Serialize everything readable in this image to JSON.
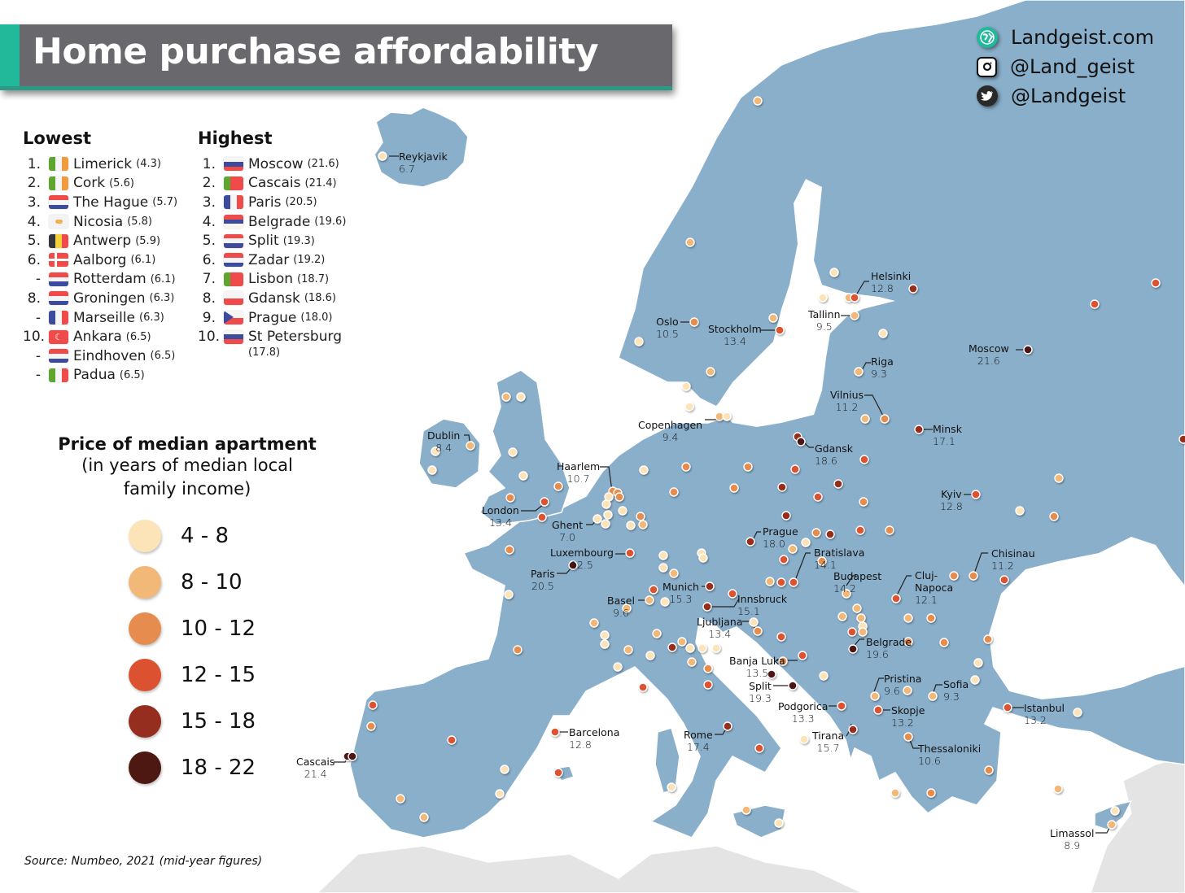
{
  "title": "Home purchase affordability",
  "social": [
    {
      "icon": "globe-icon",
      "label": "Landgeist.com",
      "color": "#22b89a"
    },
    {
      "icon": "instagram-icon",
      "label": "@Land_geist",
      "color": "#111111"
    },
    {
      "icon": "twitter-icon",
      "label": "@Landgeist",
      "color": "#2a2a2a"
    }
  ],
  "lowest": {
    "heading": "Lowest",
    "items": [
      {
        "rank": "1.",
        "city": "Limerick",
        "value": "(4.3)",
        "flag": "ireland"
      },
      {
        "rank": "2.",
        "city": "Cork",
        "value": "(5.6)",
        "flag": "ireland"
      },
      {
        "rank": "3.",
        "city": "The Hague",
        "value": "(5.7)",
        "flag": "netherlands"
      },
      {
        "rank": "4.",
        "city": "Nicosia",
        "value": "(5.8)",
        "flag": "cyprus"
      },
      {
        "rank": "5.",
        "city": "Antwerp",
        "value": "(5.9)",
        "flag": "belgium"
      },
      {
        "rank": "6.",
        "city": "Aalborg",
        "value": "(6.1)",
        "flag": "denmark"
      },
      {
        "rank": "-",
        "city": "Rotterdam",
        "value": "(6.1)",
        "flag": "netherlands"
      },
      {
        "rank": "8.",
        "city": "Groningen",
        "value": "(6.3)",
        "flag": "netherlands"
      },
      {
        "rank": "-",
        "city": "Marseille",
        "value": "(6.3)",
        "flag": "france"
      },
      {
        "rank": "10.",
        "city": "Ankara",
        "value": "(6.5)",
        "flag": "turkey"
      },
      {
        "rank": "-",
        "city": "Eindhoven",
        "value": "(6.5)",
        "flag": "netherlands"
      },
      {
        "rank": "-",
        "city": "Padua",
        "value": "(6.5)",
        "flag": "italy"
      }
    ]
  },
  "highest": {
    "heading": "Highest",
    "items": [
      {
        "rank": "1.",
        "city": "Moscow",
        "value": "(21.6)",
        "flag": "russia"
      },
      {
        "rank": "2.",
        "city": "Cascais",
        "value": "(21.4)",
        "flag": "portugal"
      },
      {
        "rank": "3.",
        "city": "Paris",
        "value": "(20.5)",
        "flag": "france"
      },
      {
        "rank": "4.",
        "city": "Belgrade",
        "value": "(19.6)",
        "flag": "serbia"
      },
      {
        "rank": "5.",
        "city": "Split",
        "value": "(19.3)",
        "flag": "croatia"
      },
      {
        "rank": "6.",
        "city": "Zadar",
        "value": "(19.2)",
        "flag": "croatia"
      },
      {
        "rank": "7.",
        "city": "Lisbon",
        "value": "(18.7)",
        "flag": "portugal"
      },
      {
        "rank": "8.",
        "city": "Gdansk",
        "value": "(18.6)",
        "flag": "poland"
      },
      {
        "rank": "9.",
        "city": "Prague",
        "value": "(18.0)",
        "flag": "czechia"
      },
      {
        "rank": "10.",
        "city": "St Petersburg",
        "value": "(17.8)",
        "flag": "russia"
      }
    ]
  },
  "legend": {
    "title": "Price of median apartment",
    "subtitle_line1": "(in years of median local",
    "subtitle_line2": "family income)",
    "bins": [
      {
        "label": "4  -  8",
        "color": "#fde3b8"
      },
      {
        "label": "8  - 10",
        "color": "#f2b877"
      },
      {
        "label": "10 - 12",
        "color": "#e68c4e"
      },
      {
        "label": "12 - 15",
        "color": "#dc5230"
      },
      {
        "label": "15 - 18",
        "color": "#962e1f"
      },
      {
        "label": "18 - 22",
        "color": "#4e1812"
      }
    ]
  },
  "source": "Source: Numbeo, 2021 (mid-year figures)",
  "colors": {
    "land": "#8aafca",
    "outside_land": "#e4e4e4",
    "sea": "#ffffff",
    "title_bar": "#69696d",
    "title_accent": "#22b89a"
  },
  "labeled_cities": [
    {
      "name": "Reykjavik",
      "value": "6.7"
    },
    {
      "name": "Helsinki",
      "value": "12.8"
    },
    {
      "name": "Tallinn",
      "value": "9.5"
    },
    {
      "name": "Oslo",
      "value": "10.5"
    },
    {
      "name": "Stockholm",
      "value": "13.4"
    },
    {
      "name": "Riga",
      "value": "9.3"
    },
    {
      "name": "Moscow",
      "value": "21.6"
    },
    {
      "name": "Vilnius",
      "value": "11.2"
    },
    {
      "name": "Minsk",
      "value": "17.1"
    },
    {
      "name": "Copenhagen",
      "value": "9.4"
    },
    {
      "name": "Dublin",
      "value": "8.4"
    },
    {
      "name": "Gdansk",
      "value": "18.6"
    },
    {
      "name": "Haarlem",
      "value": "10.7"
    },
    {
      "name": "Kyiv",
      "value": "12.8"
    },
    {
      "name": "London",
      "value": "13.4"
    },
    {
      "name": "Ghent",
      "value": "7.0"
    },
    {
      "name": "Prague",
      "value": "18.0"
    },
    {
      "name": "Luxembourg",
      "value": "12.5"
    },
    {
      "name": "Bratislava",
      "value": "14.1"
    },
    {
      "name": "Chisinau",
      "value": "11.2"
    },
    {
      "name": "Paris",
      "value": "20.5"
    },
    {
      "name": "Budapest",
      "value": "14.2"
    },
    {
      "name": "Munich",
      "value": "15.3"
    },
    {
      "name": "Cluj-Napoca",
      "value": "12.1"
    },
    {
      "name": "Basel",
      "value": "9.6"
    },
    {
      "name": "Innsbruck",
      "value": "15.1"
    },
    {
      "name": "Ljubljana",
      "value": "13.4"
    },
    {
      "name": "Belgrade",
      "value": "19.6"
    },
    {
      "name": "Banja Luka",
      "value": "13.5"
    },
    {
      "name": "Pristina",
      "value": "9.6"
    },
    {
      "name": "Sofia",
      "value": "9.3"
    },
    {
      "name": "Split",
      "value": "19.3"
    },
    {
      "name": "Podgorica",
      "value": "13.3"
    },
    {
      "name": "Istanbul",
      "value": "13.2"
    },
    {
      "name": "Skopje",
      "value": "13.2"
    },
    {
      "name": "Barcelona",
      "value": "12.8"
    },
    {
      "name": "Rome",
      "value": "17.4"
    },
    {
      "name": "Tirana",
      "value": "15.7"
    },
    {
      "name": "Thessaloniki",
      "value": "10.6"
    },
    {
      "name": "Cascais",
      "value": "21.4"
    },
    {
      "name": "Limassol",
      "value": "8.9"
    }
  ],
  "chart_data": {
    "type": "map",
    "title": "Home purchase affordability",
    "metric": "Price of median apartment (in years of median local family income)",
    "bins": [
      "4-8",
      "8-10",
      "10-12",
      "12-15",
      "15-18",
      "18-22"
    ],
    "labeled_points": [
      {
        "city": "Reykjavik",
        "value": 6.7
      },
      {
        "city": "Helsinki",
        "value": 12.8
      },
      {
        "city": "Tallinn",
        "value": 9.5
      },
      {
        "city": "Oslo",
        "value": 10.5
      },
      {
        "city": "Stockholm",
        "value": 13.4
      },
      {
        "city": "Riga",
        "value": 9.3
      },
      {
        "city": "Moscow",
        "value": 21.6
      },
      {
        "city": "Vilnius",
        "value": 11.2
      },
      {
        "city": "Minsk",
        "value": 17.1
      },
      {
        "city": "Copenhagen",
        "value": 9.4
      },
      {
        "city": "Dublin",
        "value": 8.4
      },
      {
        "city": "Gdansk",
        "value": 18.6
      },
      {
        "city": "Haarlem",
        "value": 10.7
      },
      {
        "city": "Kyiv",
        "value": 12.8
      },
      {
        "city": "London",
        "value": 13.4
      },
      {
        "city": "Ghent",
        "value": 7.0
      },
      {
        "city": "Prague",
        "value": 18.0
      },
      {
        "city": "Luxembourg",
        "value": 12.5
      },
      {
        "city": "Bratislava",
        "value": 14.1
      },
      {
        "city": "Chisinau",
        "value": 11.2
      },
      {
        "city": "Paris",
        "value": 20.5
      },
      {
        "city": "Budapest",
        "value": 14.2
      },
      {
        "city": "Munich",
        "value": 15.3
      },
      {
        "city": "Cluj-Napoca",
        "value": 12.1
      },
      {
        "city": "Basel",
        "value": 9.6
      },
      {
        "city": "Innsbruck",
        "value": 15.1
      },
      {
        "city": "Ljubljana",
        "value": 13.4
      },
      {
        "city": "Belgrade",
        "value": 19.6
      },
      {
        "city": "Banja Luka",
        "value": 13.5
      },
      {
        "city": "Pristina",
        "value": 9.6
      },
      {
        "city": "Sofia",
        "value": 9.3
      },
      {
        "city": "Split",
        "value": 19.3
      },
      {
        "city": "Podgorica",
        "value": 13.3
      },
      {
        "city": "Istanbul",
        "value": 13.2
      },
      {
        "city": "Skopje",
        "value": 13.2
      },
      {
        "city": "Barcelona",
        "value": 12.8
      },
      {
        "city": "Rome",
        "value": 17.4
      },
      {
        "city": "Tirana",
        "value": 15.7
      },
      {
        "city": "Thessaloniki",
        "value": 10.6
      },
      {
        "city": "Cascais",
        "value": 21.4
      },
      {
        "city": "Limassol",
        "value": 8.9
      }
    ],
    "source": "Numbeo, 2021 (mid-year figures)"
  }
}
